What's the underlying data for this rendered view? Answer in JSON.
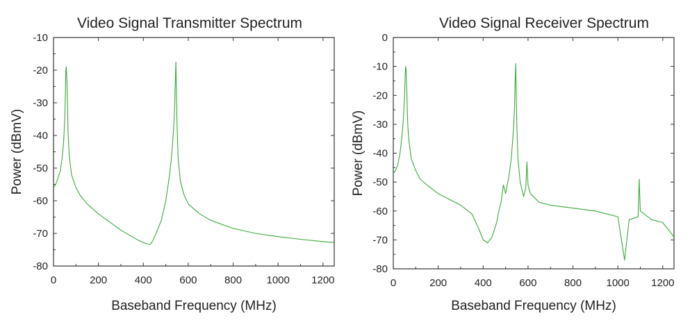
{
  "chart_data": [
    {
      "type": "line",
      "title": "Video Signal Transmitter Spectrum",
      "xlabel": "Baseband Frequency (MHz)",
      "ylabel": "Power (dBmV)",
      "xlim": [
        0,
        1250
      ],
      "ylim": [
        -80,
        -10
      ],
      "xticks": [
        0,
        200,
        400,
        600,
        800,
        1000,
        1200
      ],
      "yticks": [
        -80,
        -70,
        -60,
        -50,
        -40,
        -30,
        -20,
        -10
      ],
      "xtick_labels": [
        "0",
        "200",
        "400",
        "600",
        "800",
        "1000",
        "1200"
      ],
      "ytick_labels": [
        "-80",
        "-70",
        "-60",
        "-50",
        "-40",
        "-30",
        "-20",
        "-10"
      ],
      "grid": false,
      "line_color": "#3aa83a",
      "x": [
        0,
        10,
        20,
        30,
        40,
        45,
        50,
        53,
        55,
        57,
        60,
        63,
        65,
        70,
        80,
        100,
        120,
        150,
        200,
        250,
        300,
        350,
        380,
        400,
        420,
        430,
        440,
        460,
        480,
        500,
        515,
        525,
        535,
        540,
        543,
        545,
        547,
        550,
        555,
        565,
        580,
        600,
        650,
        700,
        800,
        900,
        1000,
        1100,
        1200,
        1250
      ],
      "y": [
        -56,
        -55,
        -53,
        -51,
        -46,
        -42,
        -35,
        -27,
        -20,
        -19,
        -24,
        -33,
        -39,
        -46,
        -52,
        -56,
        -58.5,
        -61,
        -64,
        -66.5,
        -69,
        -71,
        -72.2,
        -72.8,
        -73.3,
        -73.4,
        -72.5,
        -69.5,
        -66,
        -60,
        -53,
        -47,
        -38,
        -30,
        -22,
        -17.5,
        -25,
        -37,
        -47,
        -54,
        -58,
        -61,
        -64,
        -66,
        -68.5,
        -70,
        -71,
        -71.8,
        -72.5,
        -72.8
      ]
    },
    {
      "type": "line",
      "title": "Video Signal Receiver Spectrum",
      "xlabel": "Baseband Frequency (MHz)",
      "ylabel": "Power (dBmV)",
      "xlim": [
        0,
        1250
      ],
      "ylim": [
        -80,
        0
      ],
      "xticks": [
        0,
        200,
        400,
        600,
        800,
        1000,
        1200
      ],
      "yticks": [
        -80,
        -70,
        -60,
        -50,
        -40,
        -30,
        -20,
        -10,
        0
      ],
      "xtick_labels": [
        "0",
        "200",
        "400",
        "600",
        "800",
        "1000",
        "1200"
      ],
      "ytick_labels": [
        "-80",
        "-70",
        "-60",
        "-50",
        "-40",
        "-30",
        "-20",
        "-10",
        "0"
      ],
      "grid": false,
      "line_color": "#3aa83a",
      "x": [
        0,
        10,
        20,
        30,
        40,
        45,
        50,
        53,
        55,
        57,
        60,
        63,
        65,
        70,
        80,
        100,
        120,
        150,
        200,
        250,
        300,
        350,
        380,
        400,
        420,
        440,
        460,
        470,
        480,
        490,
        500,
        515,
        525,
        535,
        540,
        543,
        545,
        547,
        550,
        555,
        565,
        580,
        590,
        595,
        600,
        610,
        650,
        700,
        800,
        900,
        1000,
        1030,
        1050,
        1090,
        1095,
        1100,
        1150,
        1200,
        1250
      ],
      "y": [
        -47,
        -46,
        -44,
        -40,
        -33,
        -28,
        -20,
        -13,
        -10,
        -11,
        -18,
        -27,
        -31,
        -36,
        -42,
        -46,
        -49,
        -51,
        -54,
        -56,
        -58,
        -61,
        -66,
        -70,
        -71,
        -69,
        -64,
        -60,
        -57,
        -51,
        -54,
        -48,
        -42,
        -32,
        -24,
        -14,
        -9,
        -18,
        -30,
        -42,
        -50,
        -55,
        -52,
        -43,
        -51,
        -54,
        -57,
        -58,
        -59,
        -60,
        -62,
        -77,
        -63,
        -62,
        -49,
        -60,
        -63,
        -64,
        -69
      ]
    }
  ]
}
